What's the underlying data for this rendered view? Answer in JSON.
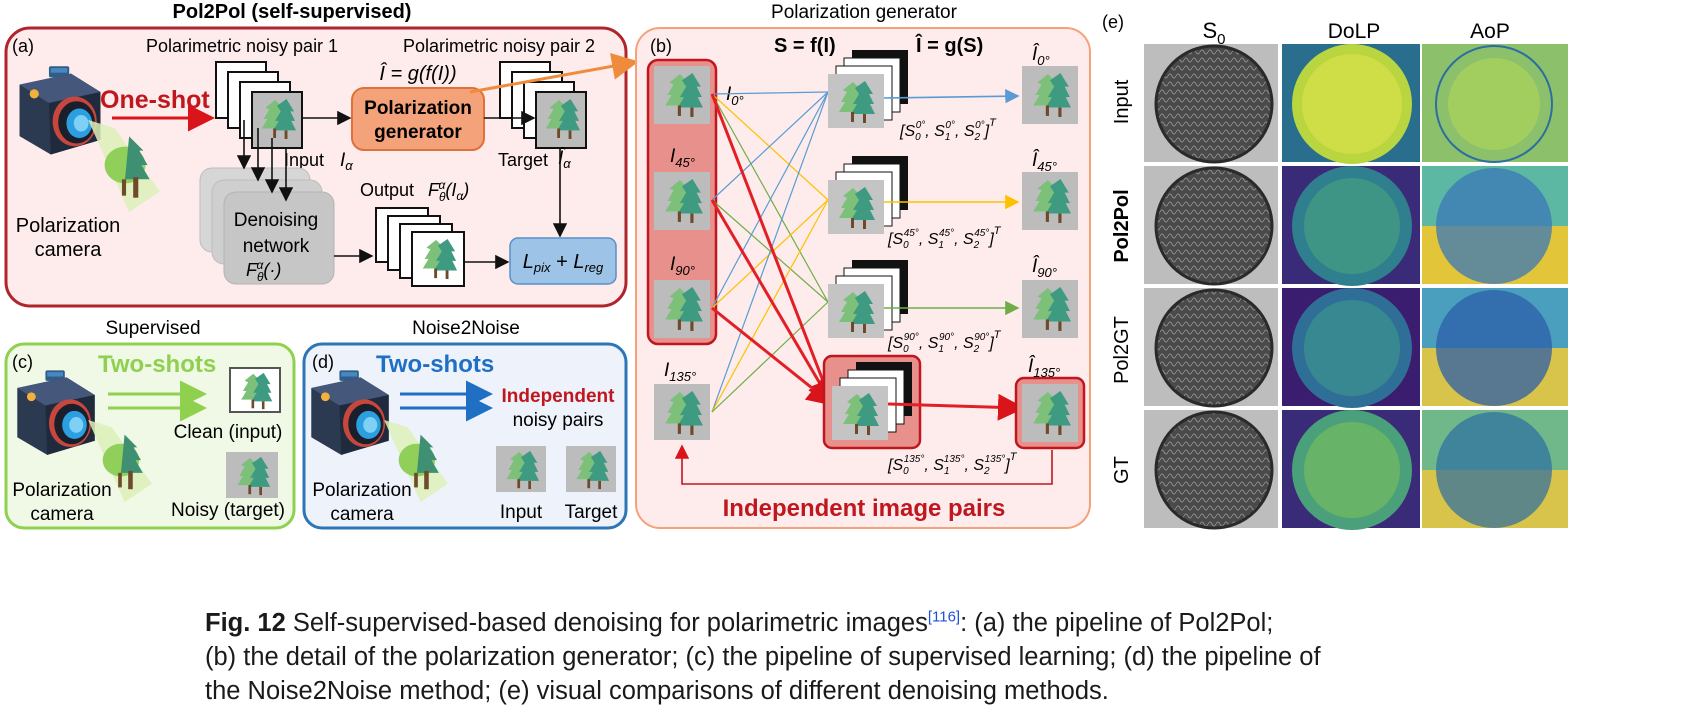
{
  "panel_a": {
    "title": "Pol2Pol  (self-supervised)",
    "tag": "(a)",
    "noisy_pair_1": "Polarimetric  noisy pair 1",
    "noisy_pair_2": "Polarimetric  noisy pair 2",
    "one_shot": "One-shot",
    "camera_label_1": "Polarization",
    "camera_label_2": "camera",
    "generator_eq": "Î = g(f(I))",
    "generator_line1": "Polarization",
    "generator_line2": "generator",
    "input_label": "Input",
    "input_symbol": "I",
    "input_sub": "α",
    "target_label": "Target",
    "target_symbol": "Î",
    "target_sub": "α",
    "output_label": "Output",
    "output_symbol": "F",
    "output_arg": "(I",
    "output_sub": "α",
    "net_line1": "Denoising",
    "net_line2": "network",
    "net_symbol": "F",
    "net_arg": "(·)",
    "theta": "θ",
    "alpha": "α",
    "loss_a": "L",
    "loss_a_sub": "pix",
    "loss_plus": " + ",
    "loss_b": "L",
    "loss_b_sub": "reg"
  },
  "panel_b": {
    "header": "Polarization generator",
    "tag": "(b)",
    "eq_left": "S = f(I)",
    "eq_right": "Î = g(S)",
    "inputs": [
      "I",
      "I",
      "I",
      "I"
    ],
    "input_subs": [
      "0°",
      "45°",
      "90°",
      "135°"
    ],
    "outputs": [
      "Î",
      "Î",
      "Î",
      "Î"
    ],
    "output_subs": [
      "0°",
      "45°",
      "90°",
      "135°"
    ],
    "stokes": [
      {
        "s0": "S",
        "sup": "0°"
      },
      {
        "s0": "S",
        "sup": "45°"
      },
      {
        "s0": "S",
        "sup": "90°"
      },
      {
        "s0": "S",
        "sup": "135°"
      }
    ],
    "footer": "Independent  image pairs",
    "colors": {
      "I0": "#5b9bd5",
      "I45": "#ffc000",
      "I90": "#70ad47",
      "I135": "#e21f26"
    }
  },
  "panel_c": {
    "header": "Supervised",
    "tag": "(c)",
    "shots": "Two-shots",
    "clean": "Clean  (input)",
    "noisy": "Noisy  (target)",
    "camera_label_1": "Polarization",
    "camera_label_2": "camera"
  },
  "panel_d": {
    "header": "Noise2Noise",
    "tag": "(d)",
    "shots": "Two-shots",
    "independent": "Independent",
    "noisy_pairs": "noisy pairs",
    "input": "Input",
    "target": "Target",
    "camera_label_1": "Polarization",
    "camera_label_2": "camera"
  },
  "panel_e": {
    "tag": "(e)",
    "columns": [
      "S",
      "DoLP",
      "AoP"
    ],
    "col_sub": "0",
    "rows": [
      "Input",
      "Pol2Pol",
      "Pol2GT",
      "GT"
    ]
  },
  "caption": {
    "fig": "Fig. 12",
    "text1": "  Self-supervised-based denoising for polarimetric images",
    "ref": "[116]",
    "text2": ": (a) the pipeline of Pol2Pol;",
    "line2": "(b) the detail of the polarization generator; (c) the pipeline of supervised learning; (d) the pipeline of",
    "line3": "the Noise2Noise method; (e) visual comparisons of different denoising methods."
  }
}
